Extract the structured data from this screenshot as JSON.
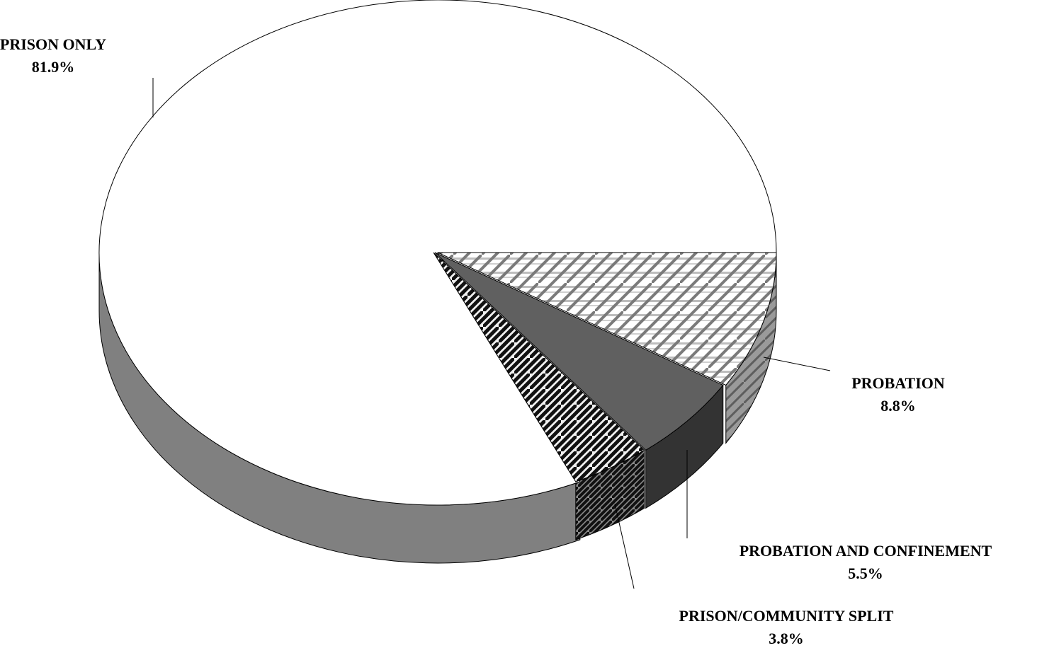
{
  "chart_data": {
    "type": "pie",
    "title": "",
    "slices": [
      {
        "name": "PRISON ONLY",
        "value": 81.9,
        "value_label": "81.9%",
        "color": "#ffffff",
        "side_color": "#808080",
        "pattern": "none"
      },
      {
        "name": "PROBATION",
        "value": 8.8,
        "value_label": "8.8%",
        "color": "#ffffff",
        "side_color": "#999999",
        "pattern": "diagonal-horizontal-hatch"
      },
      {
        "name": "PROBATION AND CONFINEMENT",
        "value": 5.5,
        "value_label": "5.5%",
        "color": "#606060",
        "side_color": "#333333",
        "pattern": "solid"
      },
      {
        "name": "PRISON/COMMUNITY SPLIT",
        "value": 3.8,
        "value_label": "3.8%",
        "color": "#ffffff",
        "side_color": "#555555",
        "pattern": "dark-diagonal-hatch"
      }
    ],
    "legend": "none",
    "style": "3d-exploded"
  }
}
